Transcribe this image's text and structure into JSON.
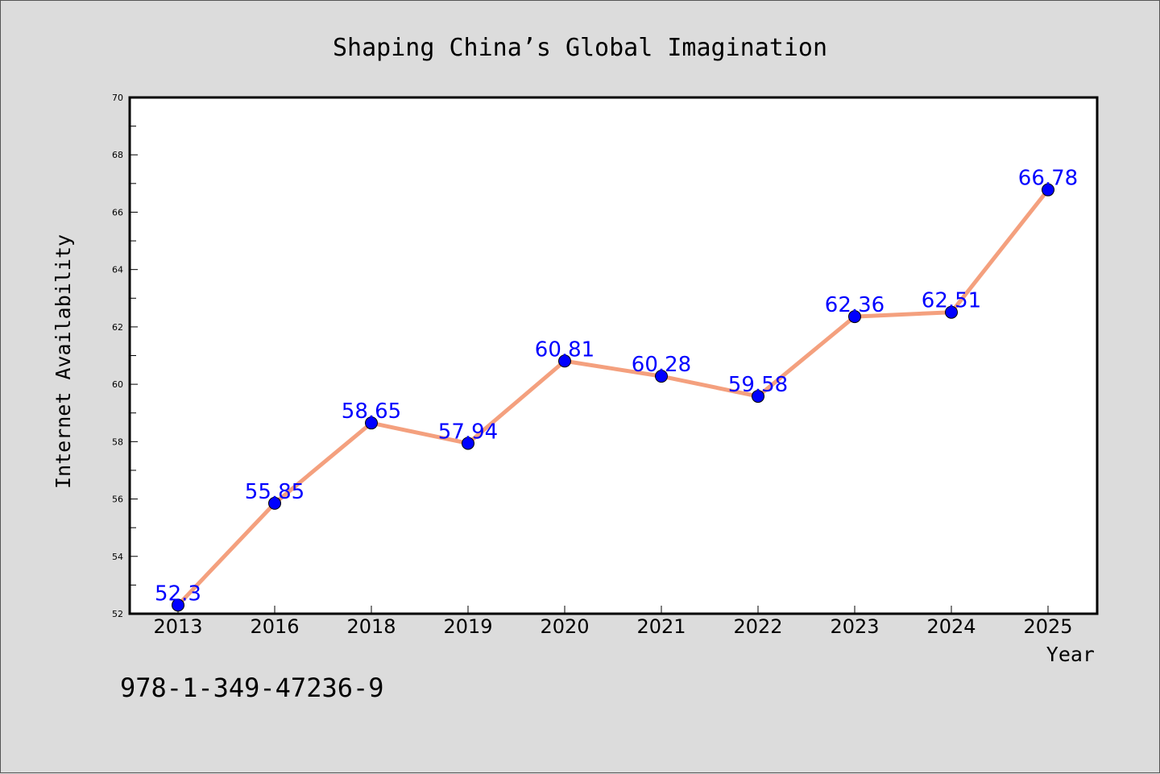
{
  "chart_data": {
    "type": "line",
    "title": "Shaping China’s Global Imagination",
    "xlabel": "Year",
    "ylabel": "Internet Availability",
    "categories": [
      "2013",
      "2016",
      "2018",
      "2019",
      "2020",
      "2021",
      "2022",
      "2023",
      "2024",
      "2025"
    ],
    "series": [
      {
        "values": [
          52.3,
          55.85,
          58.65,
          57.94,
          60.81,
          60.28,
          59.58,
          62.36,
          62.51,
          66.78
        ],
        "data_labels": [
          "52.3",
          "55.85",
          "58.65",
          "57.94",
          "60.81",
          "60.28",
          "59.58",
          "62.36",
          "62.51",
          "66.78"
        ],
        "line_color": "#f4a07e",
        "marker_color": "#0000ff"
      }
    ],
    "ylim": [
      52,
      70
    ],
    "yticks": [
      52,
      54,
      56,
      58,
      60,
      62,
      64,
      66,
      68,
      70
    ],
    "grid": false,
    "legend": "none"
  },
  "footer": {
    "isbn": "978-1-349-47236-9"
  }
}
